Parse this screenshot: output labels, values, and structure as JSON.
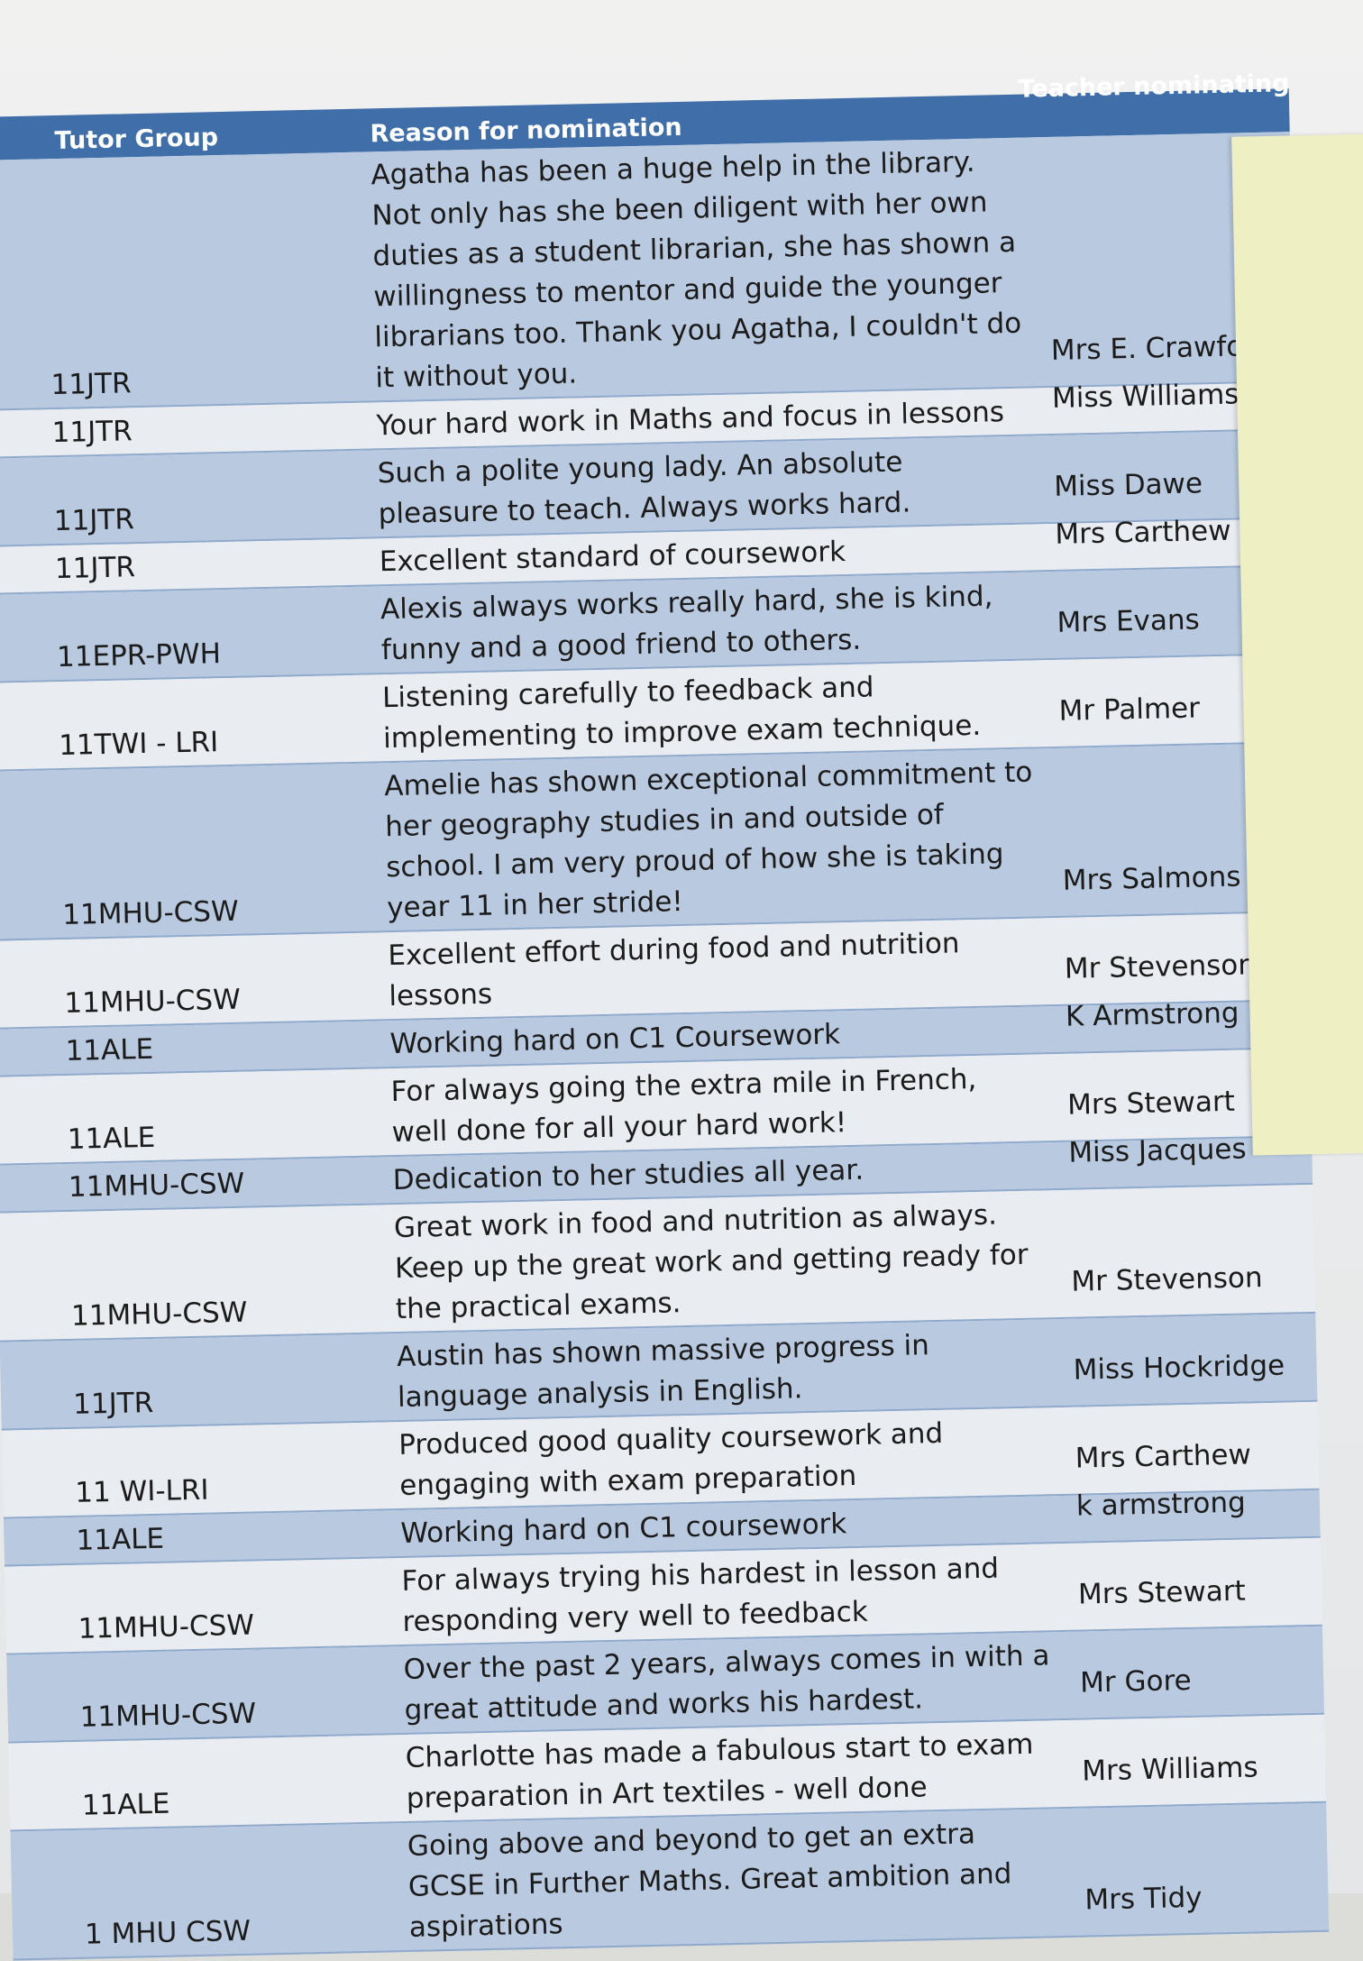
{
  "header": {
    "tutor_group": "Tutor Group",
    "reason": "Reason for nomination",
    "teacher": "Teacher nominating (ple ls t"
  },
  "rows": [
    {
      "group": "11JTR",
      "reason": "Agatha has been a huge help in the library.  Not only has she been diligent with her own duties as a student librarian, she has shown a willingness to mentor and guide the younger librarians too. Thank you Agatha, I couldn't do it without you.",
      "teacher": "Mrs E. Crawford"
    },
    {
      "group": "11JTR",
      "reason": "Your hard work in Maths and focus in lessons",
      "teacher": "Miss Williams"
    },
    {
      "group": "11JTR",
      "reason": "Such a polite young lady. An absolute pleasure to teach. Always works hard.",
      "teacher": "Miss Dawe"
    },
    {
      "group": "11JTR",
      "reason": "Excellent standard of coursework",
      "teacher": "Mrs Carthew"
    },
    {
      "group": "11EPR-PWH",
      "reason": "Alexis always works really hard, she is kind, funny and a good friend to others.",
      "teacher": "Mrs Evans"
    },
    {
      "group": "11TWI - LRI",
      "reason": "Listening carefully to feedback and implementing to improve exam technique.",
      "teacher": "Mr Palmer"
    },
    {
      "group": "11MHU-CSW",
      "reason": "Amelie has shown exceptional commitment to her geography studies in and outside of school. I am very proud of how she is taking year 11 in her stride!",
      "teacher": "Mrs Salmons"
    },
    {
      "group": "11MHU-CSW",
      "reason": "Excellent effort during food and nutrition lessons",
      "teacher": "Mr Stevenson"
    },
    {
      "group": "11ALE",
      "reason": "Working hard on C1 Coursework",
      "teacher": "K Armstrong"
    },
    {
      "group": "11ALE",
      "reason": "For always going the extra mile in French, well done for all your hard work!",
      "teacher": "Mrs Stewart"
    },
    {
      "group": "11MHU-CSW",
      "reason": "Dedication to her studies all year.",
      "teacher": "Miss Jacques"
    },
    {
      "group": "11MHU-CSW",
      "reason": "Great work in food and nutrition as always. Keep up the great work and getting ready for the practical exams.",
      "teacher": "Mr Stevenson"
    },
    {
      "group": "11JTR",
      "reason": "Austin has shown massive progress in language analysis in English.",
      "teacher": "Miss Hockridge"
    },
    {
      "group": "11 WI-LRI",
      "reason": "Produced good quality coursework and engaging with exam preparation",
      "teacher": "Mrs Carthew"
    },
    {
      "group": "11ALE",
      "reason": "Working hard on C1 coursework",
      "teacher": "k armstrong"
    },
    {
      "group": "11MHU-CSW",
      "reason": "For always trying his hardest in lesson and responding very well to feedback",
      "teacher": "Mrs Stewart"
    },
    {
      "group": "11MHU-CSW",
      "reason": "Over the past 2 years, always comes in with a great attitude and works his hardest.",
      "teacher": "Mr Gore"
    },
    {
      "group": "11ALE",
      "reason": "Charlotte has made a fabulous start to exam preparation in Art textiles  - well done",
      "teacher": "Mrs Williams"
    },
    {
      "group": "1 MHU CSW",
      "reason": "Going above and beyond to get an extra GCSE in Further Maths. Great ambition and aspirations",
      "teacher": "Mrs Tidy"
    }
  ],
  "colors": {
    "header": "#3f6ea8",
    "row_blue": "#b9cae0",
    "row_light": "#e9ecf0",
    "sticky_note": "#eef0c4"
  }
}
